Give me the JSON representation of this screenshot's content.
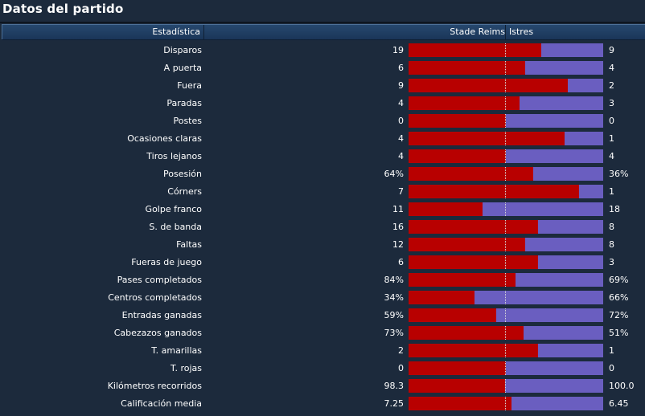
{
  "panel": {
    "title": "Datos del partido"
  },
  "header": {
    "stat_label": "Estadística",
    "home_team": "Stade Reims",
    "away_team": "Istres"
  },
  "colors": {
    "home_bar": "#b80000",
    "away_bar": "#6a5ec0",
    "background": "#1c2a3c"
  },
  "stats": [
    {
      "label": "Disparos",
      "home": "19",
      "away": "9",
      "home_share": 0.68
    },
    {
      "label": "A puerta",
      "home": "6",
      "away": "4",
      "home_share": 0.6
    },
    {
      "label": "Fuera",
      "home": "9",
      "away": "2",
      "home_share": 0.82
    },
    {
      "label": "Paradas",
      "home": "4",
      "away": "3",
      "home_share": 0.57
    },
    {
      "label": "Postes",
      "home": "0",
      "away": "0",
      "home_share": 0.5
    },
    {
      "label": "Ocasiones claras",
      "home": "4",
      "away": "1",
      "home_share": 0.8
    },
    {
      "label": "Tiros lejanos",
      "home": "4",
      "away": "4",
      "home_share": 0.5
    },
    {
      "label": "Posesión",
      "home": "64%",
      "away": "36%",
      "home_share": 0.64
    },
    {
      "label": "Córners",
      "home": "7",
      "away": "1",
      "home_share": 0.875
    },
    {
      "label": "Golpe franco",
      "home": "11",
      "away": "18",
      "home_share": 0.38
    },
    {
      "label": "S. de banda",
      "home": "16",
      "away": "8",
      "home_share": 0.667
    },
    {
      "label": "Faltas",
      "home": "12",
      "away": "8",
      "home_share": 0.6
    },
    {
      "label": "Fueras de juego",
      "home": "6",
      "away": "3",
      "home_share": 0.667
    },
    {
      "label": "Pases completados",
      "home": "84%",
      "away": "69%",
      "home_share": 0.55
    },
    {
      "label": "Centros completados",
      "home": "34%",
      "away": "66%",
      "home_share": 0.34
    },
    {
      "label": "Entradas ganadas",
      "home": "59%",
      "away": "72%",
      "home_share": 0.45
    },
    {
      "label": "Cabezazos ganados",
      "home": "73%",
      "away": "51%",
      "home_share": 0.59
    },
    {
      "label": "T. amarillas",
      "home": "2",
      "away": "1",
      "home_share": 0.667
    },
    {
      "label": "T. rojas",
      "home": "0",
      "away": "0",
      "home_share": 0.5
    },
    {
      "label": "Kilómetros recorridos",
      "home": "98.3",
      "away": "100.0",
      "home_share": 0.496
    },
    {
      "label": "Calificación media",
      "home": "7.25",
      "away": "6.45",
      "home_share": 0.53
    }
  ]
}
